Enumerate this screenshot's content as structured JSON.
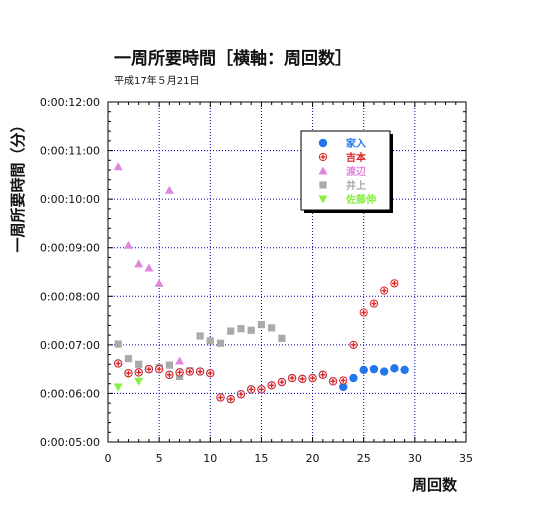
{
  "chart_data": {
    "type": "scatter",
    "title": "一周所要時間［横軸：周回数］",
    "subtitle": "平成17年５月21日",
    "xlabel": "周回数",
    "ylabel": "一周所要時間（分）",
    "xlim": [
      0,
      35
    ],
    "ylim": [
      300,
      720
    ],
    "x_ticks": [
      0,
      5,
      10,
      15,
      20,
      25,
      30,
      35
    ],
    "y_ticks": [
      300,
      360,
      420,
      480,
      540,
      600,
      660,
      720
    ],
    "y_tick_labels": [
      "0:00:05:00",
      "0:00:06:00",
      "0:00:07:00",
      "0:00:08:00",
      "0:00:09:00",
      "0:00:10:00",
      "0:00:11:00",
      "0:00:12:00"
    ],
    "grid": true,
    "legend_position": "top-right",
    "series": [
      {
        "name": "家入",
        "color": "#2277ee",
        "marker": "circle",
        "points": [
          [
            1,
            397
          ],
          [
            2,
            385
          ],
          [
            3,
            386
          ],
          [
            4,
            390
          ],
          [
            5,
            390
          ],
          [
            6,
            383
          ],
          [
            7,
            386
          ],
          [
            8,
            387
          ],
          [
            9,
            387
          ],
          [
            10,
            385
          ],
          [
            11,
            355
          ],
          [
            12,
            353
          ],
          [
            13,
            359
          ],
          [
            14,
            365
          ],
          [
            15,
            365
          ],
          [
            16,
            370
          ],
          [
            17,
            374
          ],
          [
            18,
            379
          ],
          [
            19,
            378
          ],
          [
            20,
            379
          ],
          [
            21,
            383
          ],
          [
            22,
            375
          ],
          [
            23,
            368
          ],
          [
            24,
            379
          ],
          [
            25,
            389
          ],
          [
            26,
            390
          ],
          [
            27,
            387
          ],
          [
            28,
            391
          ],
          [
            29,
            389
          ]
        ]
      },
      {
        "name": "吉本",
        "color": "#dd2222",
        "marker": "plus",
        "points": [
          [
            1,
            397
          ],
          [
            2,
            385
          ],
          [
            3,
            386
          ],
          [
            4,
            390
          ],
          [
            5,
            390
          ],
          [
            6,
            383
          ],
          [
            7,
            386
          ],
          [
            8,
            387
          ],
          [
            9,
            387
          ],
          [
            10,
            385
          ],
          [
            11,
            355
          ],
          [
            12,
            353
          ],
          [
            13,
            359
          ],
          [
            14,
            365
          ],
          [
            15,
            365
          ],
          [
            16,
            370
          ],
          [
            17,
            374
          ],
          [
            18,
            379
          ],
          [
            19,
            378
          ],
          [
            20,
            379
          ],
          [
            21,
            383
          ],
          [
            22,
            375
          ],
          [
            23,
            376
          ],
          [
            24,
            420
          ],
          [
            25,
            460
          ],
          [
            26,
            471
          ],
          [
            27,
            487
          ],
          [
            28,
            496
          ]
        ]
      },
      {
        "name": "渡辺",
        "color": "#dd88dd",
        "marker": "triangle-up",
        "points": [
          [
            1,
            640
          ],
          [
            2,
            543
          ],
          [
            3,
            520
          ],
          [
            4,
            515
          ],
          [
            5,
            496
          ],
          [
            6,
            611
          ],
          [
            7,
            400
          ]
        ]
      },
      {
        "name": "井上",
        "color": "#aaaaaa",
        "marker": "square",
        "points": [
          [
            1,
            421
          ],
          [
            2,
            403
          ],
          [
            3,
            396
          ],
          [
            4,
            390
          ],
          [
            5,
            392
          ],
          [
            6,
            395
          ],
          [
            7,
            381
          ],
          [
            8,
            388
          ],
          [
            9,
            431
          ],
          [
            10,
            425
          ],
          [
            11,
            422
          ],
          [
            12,
            437
          ],
          [
            13,
            440
          ],
          [
            14,
            438
          ],
          [
            15,
            445
          ],
          [
            16,
            441
          ],
          [
            17,
            428
          ]
        ]
      },
      {
        "name": "佐藤伸",
        "color": "#88ee44",
        "marker": "triangle-down",
        "points": [
          [
            1,
            368
          ],
          [
            2,
            384
          ],
          [
            3,
            375
          ]
        ]
      }
    ]
  }
}
